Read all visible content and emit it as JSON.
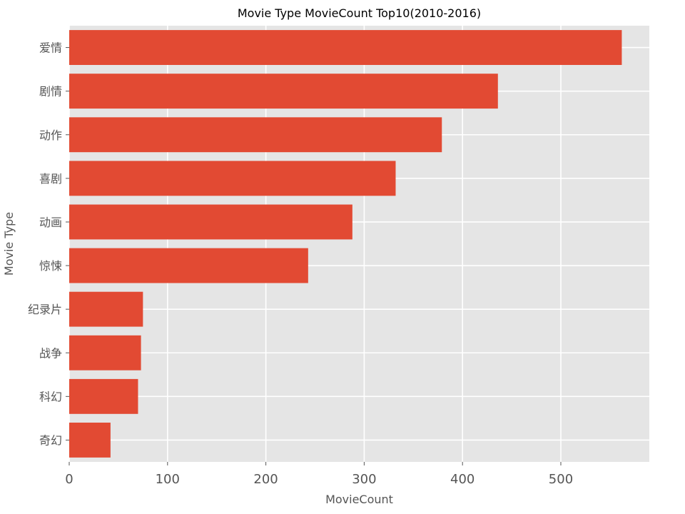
{
  "chart_data": {
    "type": "bar",
    "orientation": "horizontal",
    "title": "Movie Type MovieCount Top10(2010-2016)",
    "xlabel": "MovieCount",
    "ylabel": "Movie Type",
    "categories": [
      "爱情",
      "剧情",
      "动作",
      "喜剧",
      "动画",
      "惊悚",
      "纪录片",
      "战争",
      "科幻",
      "奇幻"
    ],
    "values": [
      562,
      436,
      379,
      332,
      288,
      243,
      75,
      73,
      70,
      42
    ],
    "xlim": [
      0,
      590
    ],
    "xticks": [
      0,
      100,
      200,
      300,
      400,
      500
    ],
    "grid": true,
    "bar_color": "#E24A33",
    "background_color": "#E5E5E5",
    "grid_color": "#FFFFFF"
  }
}
